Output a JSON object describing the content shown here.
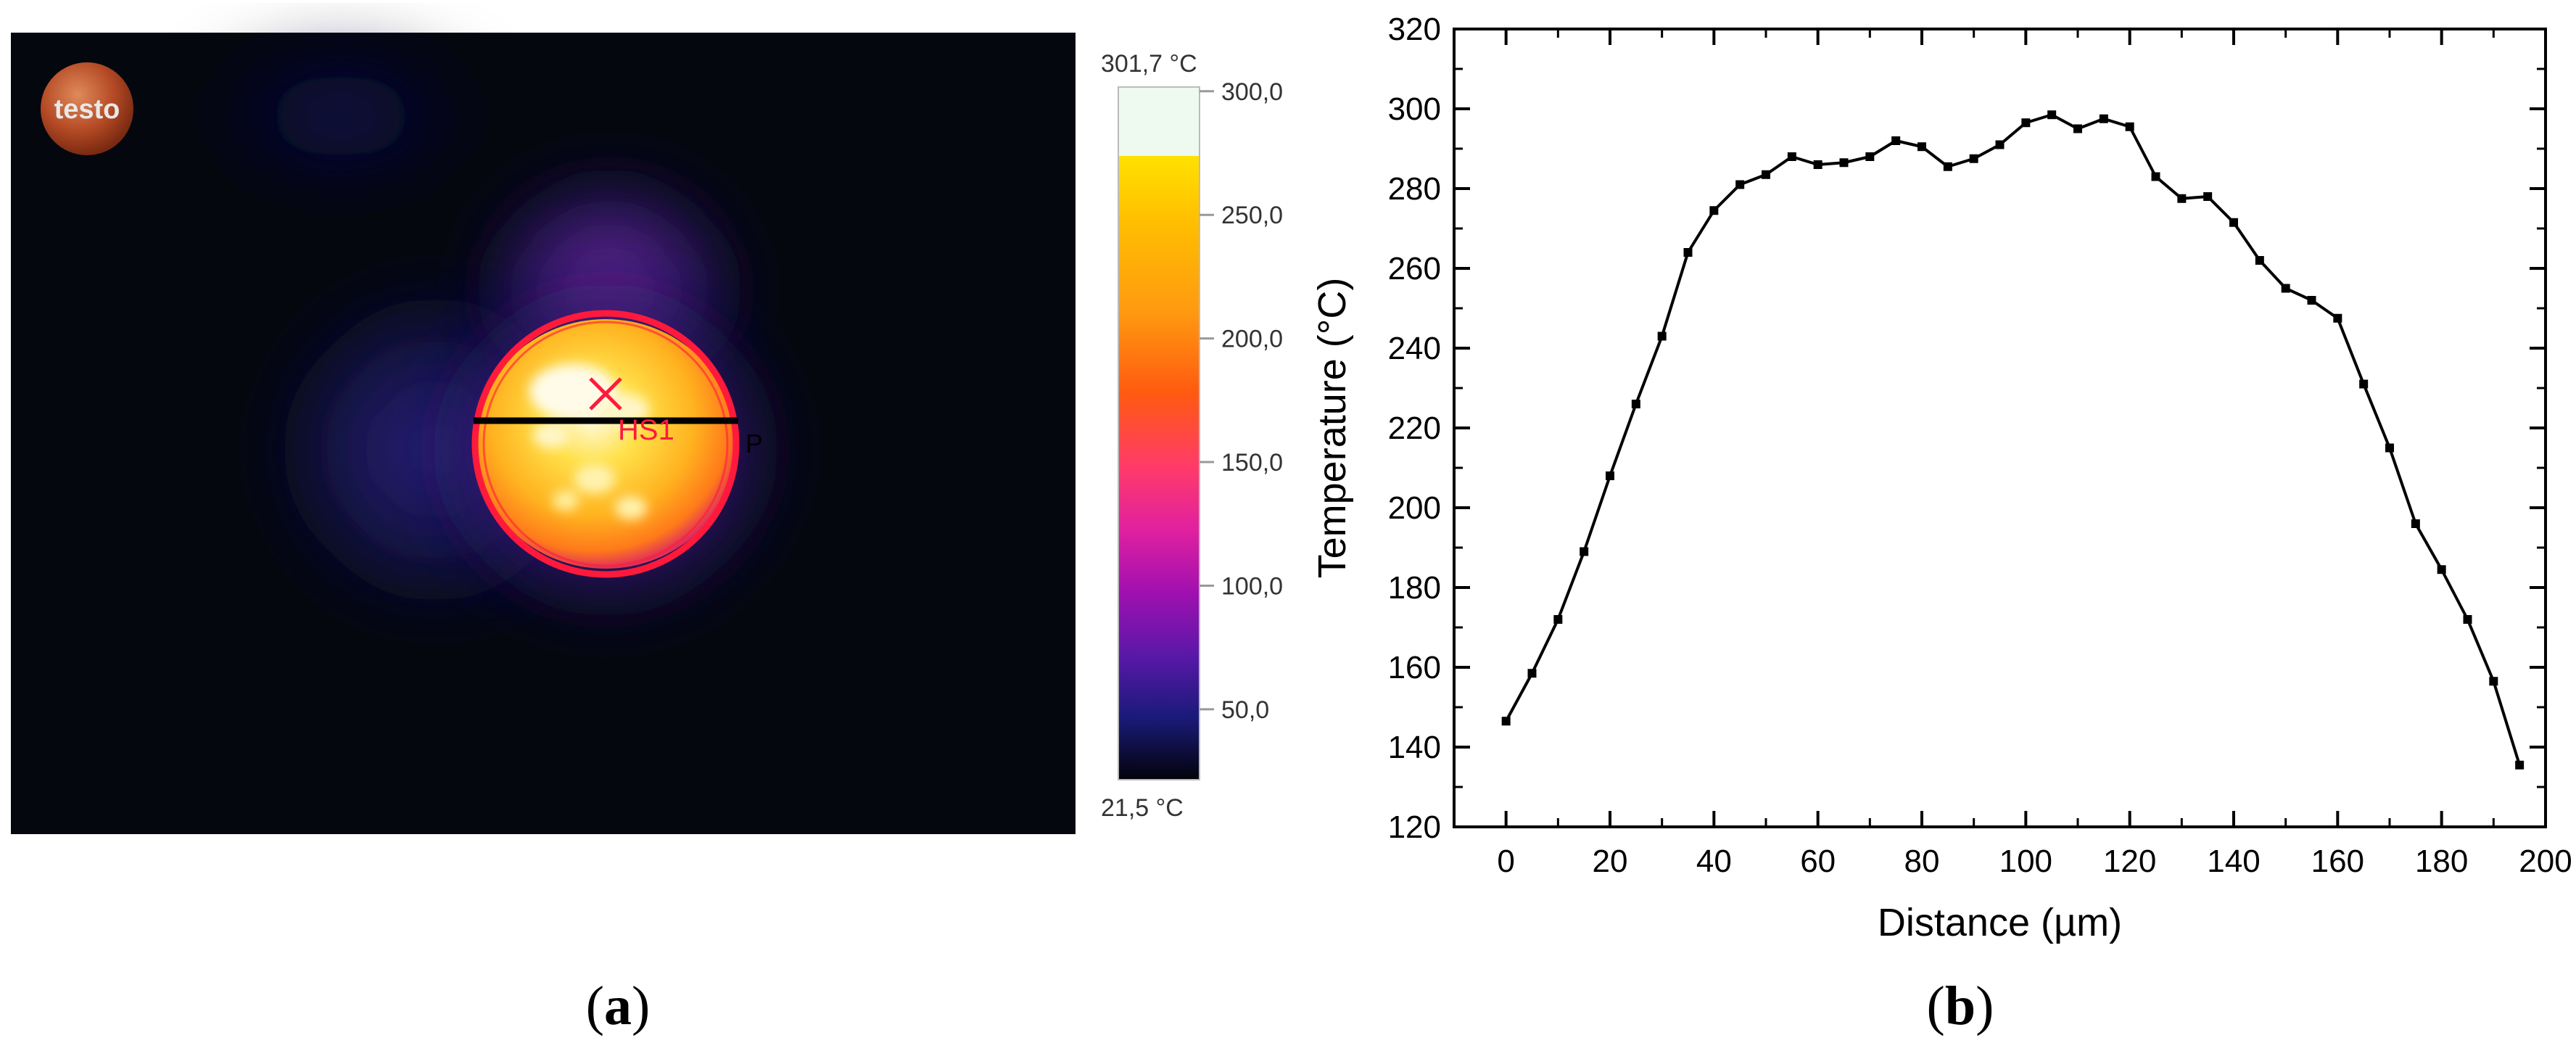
{
  "panel_a": {
    "label_open": "(",
    "label_letter": "a",
    "label_close": ")",
    "logo_text": "testo",
    "hotspot_label": "HS1",
    "profile_marker": "P",
    "colorbar": {
      "max_label": "301,7 °C",
      "min_label": "21,5 °C",
      "ticks": [
        "300,0",
        "250,0",
        "200,0",
        "150,0",
        "100,0",
        "50,0"
      ],
      "tick_values": [
        300,
        250,
        200,
        150,
        100,
        50
      ],
      "range": [
        21.5,
        301.7
      ]
    },
    "colors": {
      "hotspot_circle": "#ff1a3c",
      "profile_line": "#000000",
      "background": "#05070f"
    }
  },
  "panel_b": {
    "label_open": "(",
    "label_letter": "b",
    "label_close": ")"
  },
  "chart_data": [
    {
      "type": "heatmap",
      "colormap": "iron",
      "min_temp": 21.5,
      "max_temp": 301.7,
      "unit": "°C"
    },
    {
      "type": "line",
      "title": "",
      "xlabel": "Distance (µm)",
      "ylabel": "Temperature (°C)",
      "xlim": [
        -10,
        200
      ],
      "ylim": [
        120,
        320
      ],
      "xticks": [
        0,
        20,
        40,
        60,
        80,
        100,
        120,
        140,
        160,
        180,
        200
      ],
      "yticks": [
        120,
        140,
        160,
        180,
        200,
        220,
        240,
        260,
        280,
        300,
        320
      ],
      "grid": false,
      "series": [
        {
          "color": "#000000",
          "marker": "square",
          "x": [
            0,
            5,
            10,
            15,
            20,
            25,
            30,
            35,
            40,
            45,
            50,
            55,
            60,
            65,
            70,
            75,
            80,
            85,
            90,
            95,
            100,
            105,
            110,
            115,
            120,
            125,
            130,
            135,
            140,
            145,
            150,
            155,
            160,
            165,
            170,
            175,
            180,
            185,
            190,
            195
          ],
          "y": [
            146.5,
            158.5,
            172,
            189,
            208,
            226,
            243,
            264,
            274.5,
            281,
            283.5,
            288,
            286,
            286.5,
            288,
            292,
            290.5,
            285.5,
            287.5,
            291,
            296.5,
            298.5,
            295,
            297.5,
            295.5,
            283,
            277.5,
            278,
            271.5,
            262,
            255,
            252,
            247.5,
            231,
            215,
            196,
            184.5,
            172,
            156.5,
            135.5
          ]
        }
      ]
    }
  ]
}
